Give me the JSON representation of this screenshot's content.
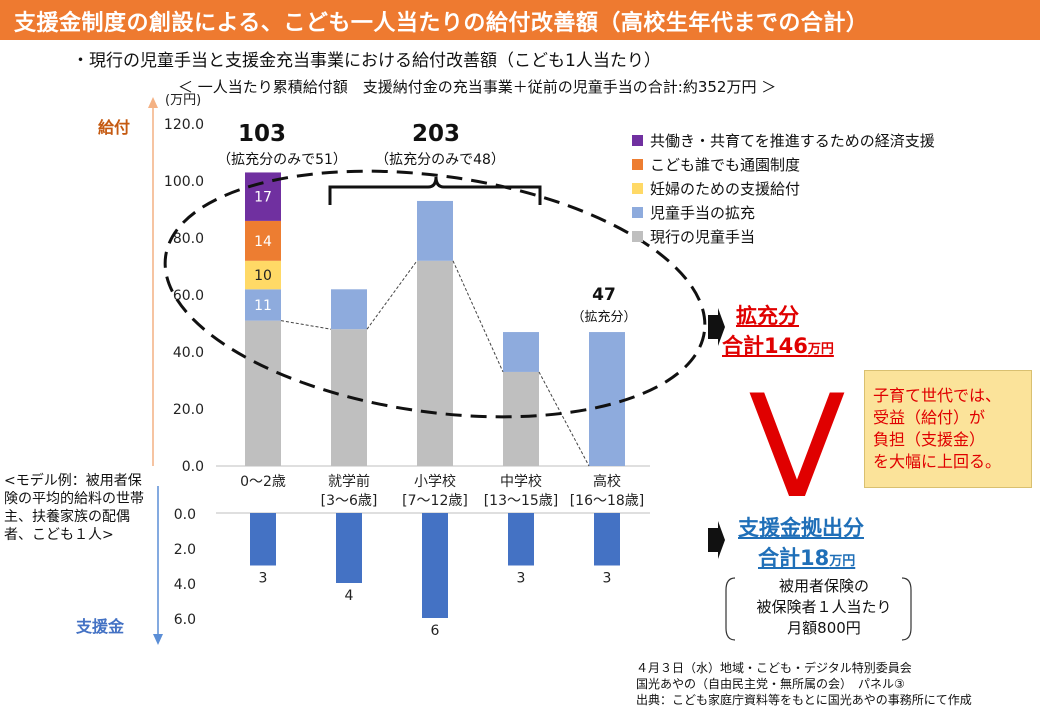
{
  "header": {
    "title": "支援金制度の創設による、こども一人当たりの給付改善額（高校生年代までの合計）",
    "subtitle": "・現行の児童手当と支援金充当事業における給付改善額（こども1人当たり）",
    "note": "＜ 一人当たり累積給付額　支援納付金の充当事業＋従前の児童手当の合計:約352万円 ＞"
  },
  "colors": {
    "header_bg": "#ee7a30",
    "current": "#bfbfbf",
    "expansion": "#8eabdd",
    "pregnancy": "#ffd966",
    "nursery": "#ed7d31",
    "dual": "#7030a0",
    "support": "#4472c4",
    "red": "#e00000",
    "blue": "#1f6fb8"
  },
  "chart_data": [
    {
      "type": "bar",
      "stacked": true,
      "title": "給付",
      "unit_label": "(万円)",
      "ylabel": "給付",
      "ylim": [
        0,
        120
      ],
      "yticks": [
        "0.0",
        "20.0",
        "40.0",
        "60.0",
        "80.0",
        "100.0",
        "120.0"
      ],
      "categories": [
        "0〜2歳",
        "就学前\n[3〜6歳]",
        "小学校\n[7〜12歳]",
        "中学校\n[13〜15歳]",
        "高校\n[16〜18歳]"
      ],
      "series": [
        {
          "name": "現行の児童手当",
          "color": "#bfbfbf",
          "values": [
            51,
            48,
            72,
            33,
            0
          ]
        },
        {
          "name": "児童手当の拡充",
          "color": "#8eabdd",
          "values": [
            11,
            14,
            21,
            14,
            47
          ]
        },
        {
          "name": "妊婦のための支援給付",
          "color": "#ffd966",
          "values": [
            10,
            0,
            0,
            0,
            0
          ]
        },
        {
          "name": "こども誰でも通園制度",
          "color": "#ed7d31",
          "values": [
            14,
            0,
            0,
            0,
            0
          ]
        },
        {
          "name": "共働き・共育てを推進するための経済支援",
          "color": "#7030a0",
          "values": [
            17,
            0,
            0,
            0,
            0
          ]
        }
      ],
      "segment_labels": [
        {
          "value": "11",
          "series": 1,
          "category": 0
        },
        {
          "value": "10",
          "series": 2,
          "category": 0
        },
        {
          "value": "14",
          "series": 3,
          "category": 0
        },
        {
          "value": "17",
          "series": 4,
          "category": 0
        }
      ],
      "annotations": {
        "first_total": "103",
        "first_sub": "（拡充分のみで51）",
        "group_total": "203",
        "group_sub": "（拡充分のみで48）",
        "high_total": "47",
        "high_sub": "（拡充分）"
      }
    },
    {
      "type": "bar",
      "title": "支援金",
      "ylabel": "支援金",
      "ylim": [
        0,
        6
      ],
      "inverted": true,
      "yticks": [
        "0.0",
        "2.0",
        "4.0",
        "6.0"
      ],
      "categories": [
        "0〜2歳",
        "就学前",
        "小学校",
        "中学校",
        "高校"
      ],
      "values": [
        3,
        4,
        6,
        3,
        3
      ],
      "color": "#4472c4"
    }
  ],
  "legend": [
    {
      "name": "共働き・共育てを推進するための経済支援",
      "color": "#7030a0"
    },
    {
      "name": "こども誰でも通園制度",
      "color": "#ed7d31"
    },
    {
      "name": "妊婦のための支援給付",
      "color": "#ffd966"
    },
    {
      "name": "児童手当の拡充",
      "color": "#8eabdd"
    },
    {
      "name": "現行の児童手当",
      "color": "#bfbfbf"
    }
  ],
  "right_panel": {
    "expansion_title": "拡充分",
    "expansion_total": "合計146",
    "expansion_unit": "万円",
    "support_title": "支援金拠出分",
    "support_total": "合計18",
    "support_unit": "万円",
    "support_detail_1": "被用者保険の",
    "support_detail_2": "被保険者１人当たり",
    "support_detail_3": "月額800円",
    "compare_symbol": "V",
    "callout_1": "子育て世代では、",
    "callout_2": "受益（給付）が",
    "callout_3": "負担（支援金）",
    "callout_4": "を大幅に上回る。"
  },
  "model_note": "<モデル例：被用者保険の平均的給料の世帯主、扶養家族の配偶者、こども１人>",
  "credits": {
    "line1": "４月３日（水）地域・こども・デジタル特別委員会",
    "line2": "国光あやの（自由民主党・無所属の会）　パネル③",
    "line3": "出典：こども家庭庁資料等をもとに国光あやの事務所にて作成"
  }
}
